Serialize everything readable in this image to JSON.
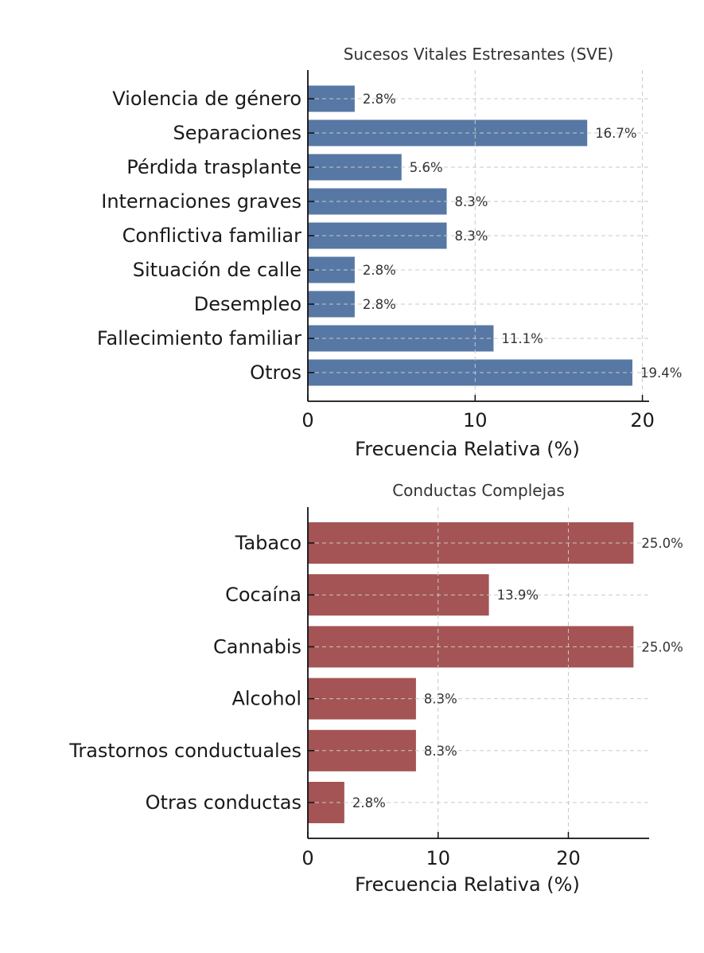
{
  "chart_data": [
    {
      "type": "bar",
      "orientation": "horizontal",
      "title": "Sucesos Vitales Estresantes (SVE)",
      "xlabel": "Frecuencia Relativa (%)",
      "ylabel": "",
      "categories": [
        "Violencia de género",
        "Separaciones",
        "Pérdida trasplante",
        "Internaciones graves",
        "Conflictiva familiar",
        "Situación de calle",
        "Desempleo",
        "Fallecimiento familiar",
        "Otros"
      ],
      "values": [
        2.8,
        16.7,
        5.6,
        8.3,
        8.3,
        2.8,
        2.8,
        11.1,
        19.4
      ],
      "data_labels": [
        "2.8%",
        "16.7%",
        "5.6%",
        "8.3%",
        "8.3%",
        "2.8%",
        "2.8%",
        "11.1%",
        "19.4%"
      ],
      "xticks": [
        "0",
        "10",
        "20"
      ],
      "xlim": [
        0,
        20.4
      ],
      "grid": true,
      "color": "#5778a4"
    },
    {
      "type": "bar",
      "orientation": "horizontal",
      "title": "Conductas Complejas",
      "xlabel": "Frecuencia Relativa (%)",
      "ylabel": "",
      "categories": [
        "Tabaco",
        "Cocaína",
        "Cannabis",
        "Alcohol",
        "Trastornos conductuales",
        "Otras conductas"
      ],
      "values": [
        25.0,
        13.9,
        25.0,
        8.3,
        8.3,
        2.8
      ],
      "data_labels": [
        "25.0%",
        "13.9%",
        "25.0%",
        "8.3%",
        "8.3%",
        "2.8%"
      ],
      "xticks": [
        "0",
        "10",
        "20"
      ],
      "xlim": [
        0,
        26.2
      ],
      "grid": true,
      "color": "#a45454"
    }
  ]
}
